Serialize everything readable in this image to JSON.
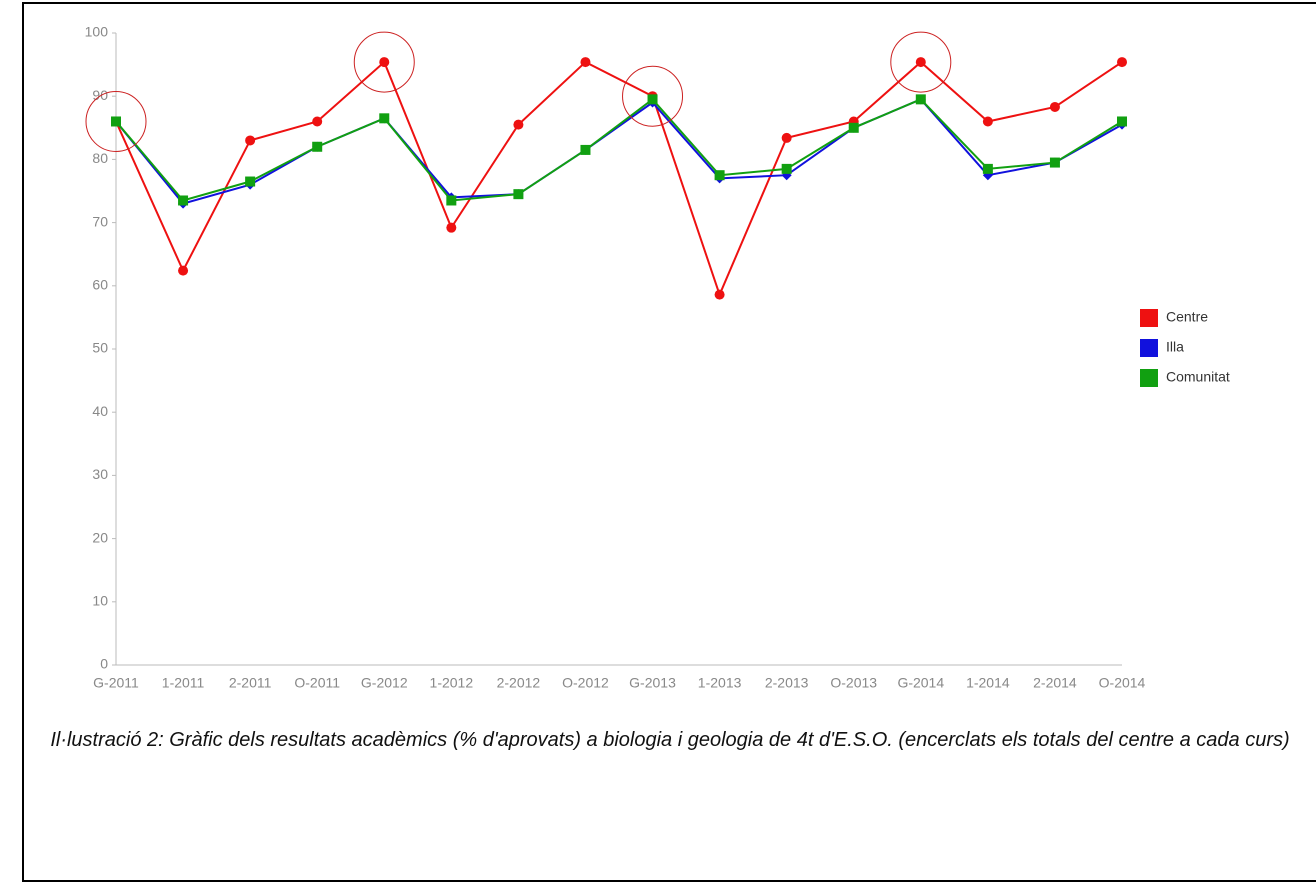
{
  "chart_data": {
    "type": "line",
    "categories": [
      "G-2011",
      "1-2011",
      "2-2011",
      "O-2011",
      "G-2012",
      "1-2012",
      "2-2012",
      "O-2012",
      "G-2013",
      "1-2013",
      "2-2013",
      "O-2013",
      "G-2014",
      "1-2014",
      "2-2014",
      "O-2014"
    ],
    "series": [
      {
        "name": "Centre",
        "color": "#ee1111",
        "values": [
          86,
          62.4,
          83,
          86,
          95.4,
          69.2,
          85.5,
          95.4,
          90,
          58.6,
          83.4,
          86,
          95.4,
          86,
          88.3,
          95.4
        ]
      },
      {
        "name": "Illa",
        "color": "#1111dd",
        "values": [
          86,
          73,
          76,
          82,
          86.5,
          74,
          74.5,
          81.5,
          89,
          77,
          77.5,
          85,
          89.5,
          77.5,
          79.5,
          85.5
        ]
      },
      {
        "name": "Comunitat",
        "color": "#11a011",
        "values": [
          86,
          73.5,
          76.5,
          82,
          86.5,
          73.5,
          74.5,
          81.5,
          89.5,
          77.5,
          78.5,
          85,
          89.5,
          78.5,
          79.5,
          86
        ]
      }
    ],
    "ylim": [
      0,
      100
    ],
    "yticks": [
      0,
      10,
      20,
      30,
      40,
      50,
      60,
      70,
      80,
      90,
      100
    ],
    "grid": false,
    "legend": "right",
    "caption": "Il·lustració 2: Gràfic dels resultats acadèmics (% d'aprovats) a biologia i geologia de 4t d'E.S.O. (encerclats els totals del centre a cada curs)"
  }
}
